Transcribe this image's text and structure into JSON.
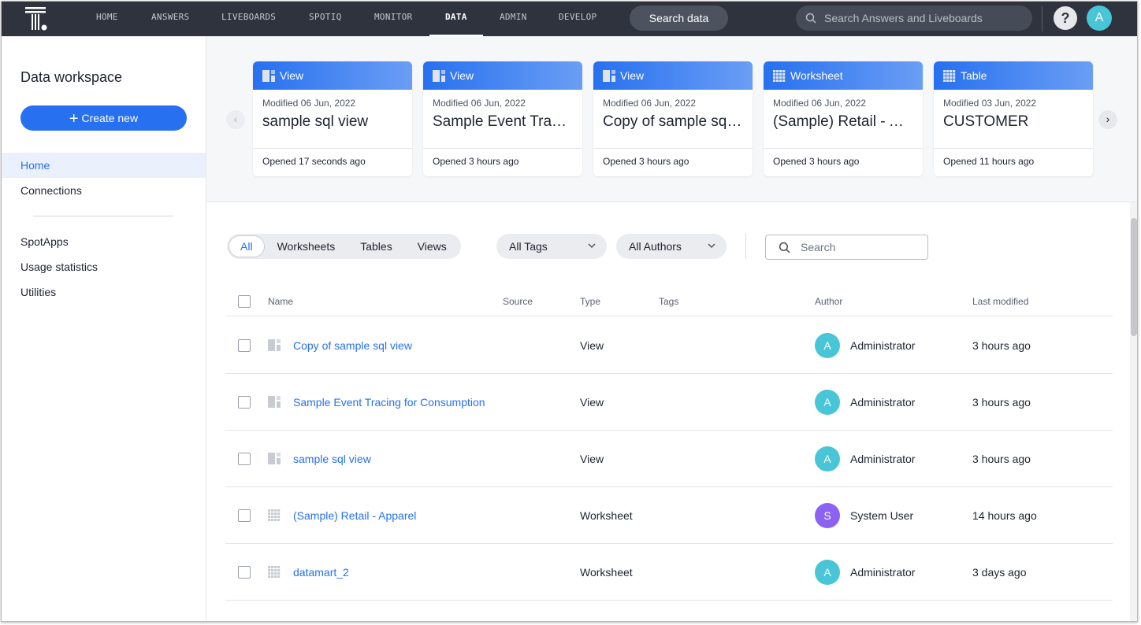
{
  "topnav": {
    "items": [
      "HOME",
      "ANSWERS",
      "LIVEBOARDS",
      "SPOTIQ",
      "MONITOR",
      "DATA",
      "ADMIN",
      "DEVELOP"
    ],
    "active": "DATA",
    "search_data": "Search data",
    "search_placeholder": "Search Answers and Liveboards",
    "help": "?",
    "user_initial": "A"
  },
  "sidebar": {
    "title": "Data workspace",
    "create_label": "Create new",
    "items": [
      {
        "label": "Home",
        "active": true
      },
      {
        "label": "Connections"
      },
      {
        "label": "SpotApps"
      },
      {
        "label": "Usage statistics"
      },
      {
        "label": "Utilities"
      }
    ]
  },
  "recent": [
    {
      "type": "View",
      "icon": "view-icon",
      "modified": "Modified 06 Jun, 2022",
      "title": "sample sql view",
      "opened": "Opened 17 seconds ago"
    },
    {
      "type": "View",
      "icon": "view-icon",
      "modified": "Modified 06 Jun, 2022",
      "title": "Sample Event Tracing for Consumption",
      "opened": "Opened 3 hours ago"
    },
    {
      "type": "View",
      "icon": "view-icon",
      "modified": "Modified 06 Jun, 2022",
      "title": "Copy of sample sql view",
      "opened": "Opened 3 hours ago"
    },
    {
      "type": "Worksheet",
      "icon": "worksheet-icon",
      "modified": "Modified 06 Jun, 2022",
      "title": "(Sample) Retail - Apparel",
      "opened": "Opened 3 hours ago"
    },
    {
      "type": "Table",
      "icon": "table-icon",
      "modified": "Modified 03 Jun, 2022",
      "title": "CUSTOMER",
      "opened": "Opened 11 hours ago"
    }
  ],
  "filters": {
    "segments": [
      "All",
      "Worksheets",
      "Tables",
      "Views"
    ],
    "active": "All",
    "tags": "All Tags",
    "authors": "All Authors",
    "search_placeholder": "Search"
  },
  "table": {
    "columns": [
      "Name",
      "Source",
      "Type",
      "Tags",
      "Author",
      "Last modified"
    ],
    "rows": [
      {
        "name": "Copy of sample sql view",
        "icon": "view-icon",
        "type": "View",
        "author": "Administrator",
        "initial": "A",
        "color": "#48c5d6",
        "modified": "3 hours ago"
      },
      {
        "name": "Sample Event Tracing for Consumption",
        "icon": "view-icon",
        "type": "View",
        "author": "Administrator",
        "initial": "A",
        "color": "#48c5d6",
        "modified": "3 hours ago"
      },
      {
        "name": "sample sql view",
        "icon": "view-icon",
        "type": "View",
        "author": "Administrator",
        "initial": "A",
        "color": "#48c5d6",
        "modified": "3 hours ago"
      },
      {
        "name": "(Sample) Retail - Apparel",
        "icon": "worksheet-icon",
        "type": "Worksheet",
        "author": "System User",
        "initial": "S",
        "color": "#8c62f5",
        "modified": "14 hours ago"
      },
      {
        "name": "datamart_2",
        "icon": "worksheet-icon",
        "type": "Worksheet",
        "author": "Administrator",
        "initial": "A",
        "color": "#48c5d6",
        "modified": "3 days ago"
      }
    ]
  },
  "colors": {
    "accent": "#2770ef",
    "topbar": "#2e333d"
  }
}
